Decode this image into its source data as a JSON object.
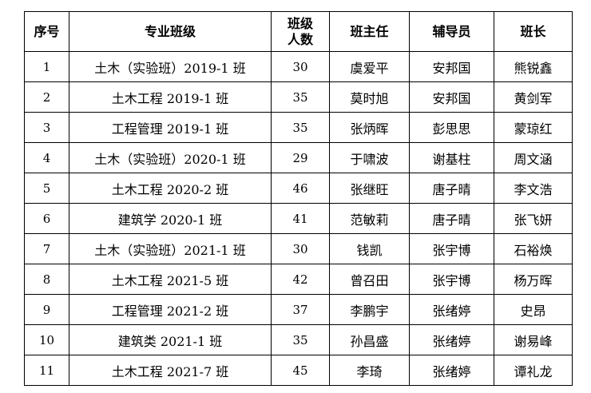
{
  "header": {
    "seq": "序号",
    "class_name": "专业班级",
    "count_line1": "班级",
    "count_line2": "人数",
    "head_teacher": "班主任",
    "counselor": "辅导员",
    "monitor": "班长"
  },
  "rows": [
    {
      "seq": "1",
      "class_name": "土木（实验班）2019-1 班",
      "count": "30",
      "head_teacher": "虞爱平",
      "counselor": "安邦国",
      "monitor": "熊锐鑫"
    },
    {
      "seq": "2",
      "class_name": "土木工程 2019-1 班",
      "count": "35",
      "head_teacher": "莫时旭",
      "counselor": "安邦国",
      "monitor": "黄剑军"
    },
    {
      "seq": "3",
      "class_name": "工程管理 2019-1 班",
      "count": "35",
      "head_teacher": "张炳晖",
      "counselor": "彭思思",
      "monitor": "蒙琼红"
    },
    {
      "seq": "4",
      "class_name": "土木（实验班）2020-1 班",
      "count": "29",
      "head_teacher": "于啸波",
      "counselor": "谢基柱",
      "monitor": "周文涵"
    },
    {
      "seq": "5",
      "class_name": "土木工程 2020-2 班",
      "count": "46",
      "head_teacher": "张继旺",
      "counselor": "唐子晴",
      "monitor": "李文浩"
    },
    {
      "seq": "6",
      "class_name": "建筑学 2020-1 班",
      "count": "41",
      "head_teacher": "范敏莉",
      "counselor": "唐子晴",
      "monitor": "张飞妍"
    },
    {
      "seq": "7",
      "class_name": "土木（实验班）2021-1 班",
      "count": "30",
      "head_teacher": "钱凯",
      "counselor": "张宇博",
      "monitor": "石裕焕"
    },
    {
      "seq": "8",
      "class_name": "土木工程 2021-5 班",
      "count": "42",
      "head_teacher": "曾召田",
      "counselor": "张宇博",
      "monitor": "杨万晖"
    },
    {
      "seq": "9",
      "class_name": "工程管理 2021-2 班",
      "count": "37",
      "head_teacher": "李鹏宇",
      "counselor": "张绪婷",
      "monitor": "史昂"
    },
    {
      "seq": "10",
      "class_name": "建筑类 2021-1 班",
      "count": "35",
      "head_teacher": "孙昌盛",
      "counselor": "张绪婷",
      "monitor": "谢易峰"
    },
    {
      "seq": "11",
      "class_name": "土木工程 2021-7 班",
      "count": "45",
      "head_teacher": "李琦",
      "counselor": "张绪婷",
      "monitor": "谭礼龙"
    }
  ]
}
